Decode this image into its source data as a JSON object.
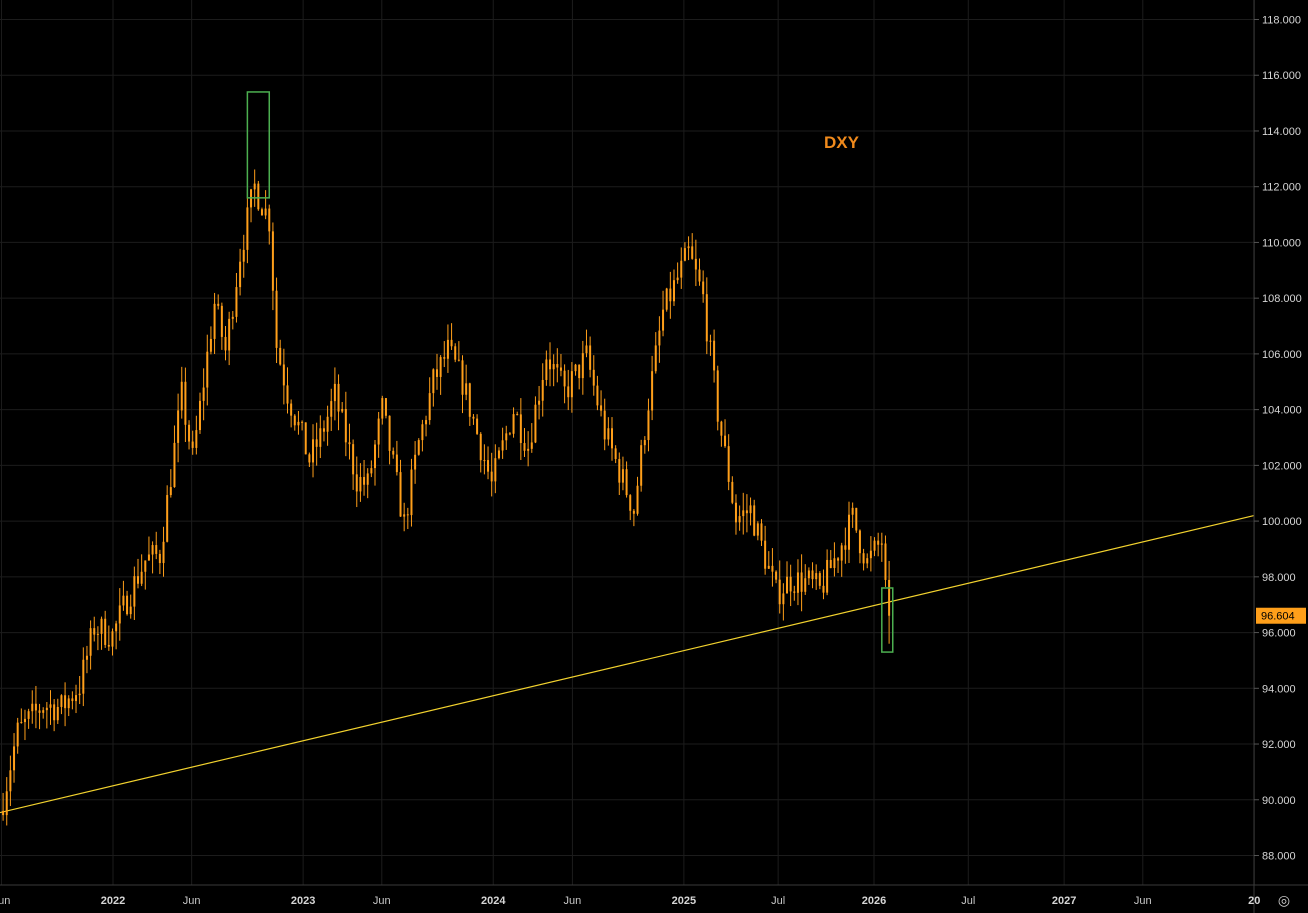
{
  "chart_data": {
    "type": "candlestick",
    "title": "DXY",
    "symbol": "DXY",
    "last_price": "96.604",
    "ylim": [
      86.6,
      119.0
    ],
    "y_ticks": [
      "118.000",
      "116.000",
      "114.000",
      "112.000",
      "110.000",
      "108.000",
      "106.000",
      "104.000",
      "102.000",
      "100.000",
      "98.000",
      "96.000",
      "94.000",
      "92.000",
      "90.000",
      "88.000"
    ],
    "x_ticks": [
      {
        "label": "Jun",
        "date": "2021-06-01",
        "major": false
      },
      {
        "label": "2022",
        "date": "2022-01-01",
        "major": true
      },
      {
        "label": "Jun",
        "date": "2022-06-01",
        "major": false
      },
      {
        "label": "2023",
        "date": "2023-01-01",
        "major": true
      },
      {
        "label": "Jun",
        "date": "2023-06-01",
        "major": false
      },
      {
        "label": "2024",
        "date": "2024-01-01",
        "major": true
      },
      {
        "label": "Jun",
        "date": "2024-06-01",
        "major": false
      },
      {
        "label": "2025",
        "date": "2025-01-01",
        "major": true
      },
      {
        "label": "Jul",
        "date": "2025-07-01",
        "major": false
      },
      {
        "label": "2026",
        "date": "2026-01-01",
        "major": true
      },
      {
        "label": "Jul",
        "date": "2026-07-01",
        "major": false
      },
      {
        "label": "2027",
        "date": "2027-01-01",
        "major": true
      },
      {
        "label": "Jun",
        "date": "2027-06-01",
        "major": false
      },
      {
        "label": "20",
        "date": "2028-01-01",
        "major": true
      }
    ],
    "x_range": [
      "2021-06-01",
      "2028-01-01"
    ],
    "anchors": [
      [
        "2021-06-04",
        90.0
      ],
      [
        "2021-07-01",
        92.4
      ],
      [
        "2021-08-20",
        93.4
      ],
      [
        "2021-09-24",
        93.3
      ],
      [
        "2021-10-29",
        94.1
      ],
      [
        "2021-11-26",
        96.2
      ],
      [
        "2021-12-31",
        95.9
      ],
      [
        "2022-01-28",
        97.2
      ],
      [
        "2022-03-04",
        98.6
      ],
      [
        "2022-04-01",
        98.8
      ],
      [
        "2022-05-13",
        104.5
      ],
      [
        "2022-06-03",
        102.2
      ],
      [
        "2022-07-15",
        107.8
      ],
      [
        "2022-08-05",
        106.1
      ],
      [
        "2022-09-02",
        109.6
      ],
      [
        "2022-09-30",
        112.0
      ],
      [
        "2022-10-28",
        110.8
      ],
      [
        "2022-11-11",
        106.3
      ],
      [
        "2022-12-02",
        104.6
      ],
      [
        "2023-01-13",
        102.2
      ],
      [
        "2023-02-03",
        103.0
      ],
      [
        "2023-03-03",
        104.5
      ],
      [
        "2023-04-14",
        101.5
      ],
      [
        "2023-05-05",
        101.3
      ],
      [
        "2023-06-02",
        104.0
      ],
      [
        "2023-07-14",
        99.9
      ],
      [
        "2023-08-11",
        102.8
      ],
      [
        "2023-09-08",
        105.0
      ],
      [
        "2023-10-06",
        106.1
      ],
      [
        "2023-11-03",
        105.0
      ],
      [
        "2023-12-29",
        101.3
      ],
      [
        "2024-02-09",
        104.0
      ],
      [
        "2024-03-08",
        102.7
      ],
      [
        "2024-04-12",
        106.0
      ],
      [
        "2024-05-17",
        104.6
      ],
      [
        "2024-06-28",
        105.9
      ],
      [
        "2024-08-02",
        103.2
      ],
      [
        "2024-09-27",
        100.4
      ],
      [
        "2024-10-25",
        104.3
      ],
      [
        "2024-11-22",
        107.5
      ],
      [
        "2025-01-10",
        109.6
      ],
      [
        "2025-02-07",
        108.0
      ],
      [
        "2025-03-07",
        103.9
      ],
      [
        "2025-04-11",
        100.1
      ],
      [
        "2025-05-09",
        100.4
      ],
      [
        "2025-06-27",
        97.4
      ],
      [
        "2025-07-25",
        97.9
      ],
      [
        "2025-08-29",
        97.8
      ],
      [
        "2025-09-19",
        97.5
      ],
      [
        "2025-10-24",
        98.9
      ],
      [
        "2025-11-21",
        100.1
      ],
      [
        "2025-12-19",
        98.5
      ],
      [
        "2026-01-09",
        99.1
      ],
      [
        "2026-01-16",
        99.3
      ],
      [
        "2026-01-23",
        97.5
      ],
      [
        "2026-01-30",
        96.604
      ]
    ],
    "trendline": {
      "start": {
        "date": "2021-05-20",
        "value": 89.5
      },
      "end": {
        "date": "2028-01-01",
        "value": 100.2
      }
    },
    "highlight_boxes": [
      {
        "from": "2022-09-16",
        "to": "2022-10-28",
        "low": 111.6,
        "high": 115.4
      },
      {
        "from": "2026-01-16",
        "to": "2026-02-06",
        "low": 95.3,
        "high": 97.6
      }
    ],
    "colors": {
      "background": "#000000",
      "candle": "#ff9f1a",
      "trendline": "#f2d22e",
      "box": "#4caf50",
      "grid": "#1c1c1c",
      "title": "#f08a1c",
      "price_tag": "#ff9f1a"
    }
  },
  "ui": {
    "settings_icon": "gear-icon"
  }
}
